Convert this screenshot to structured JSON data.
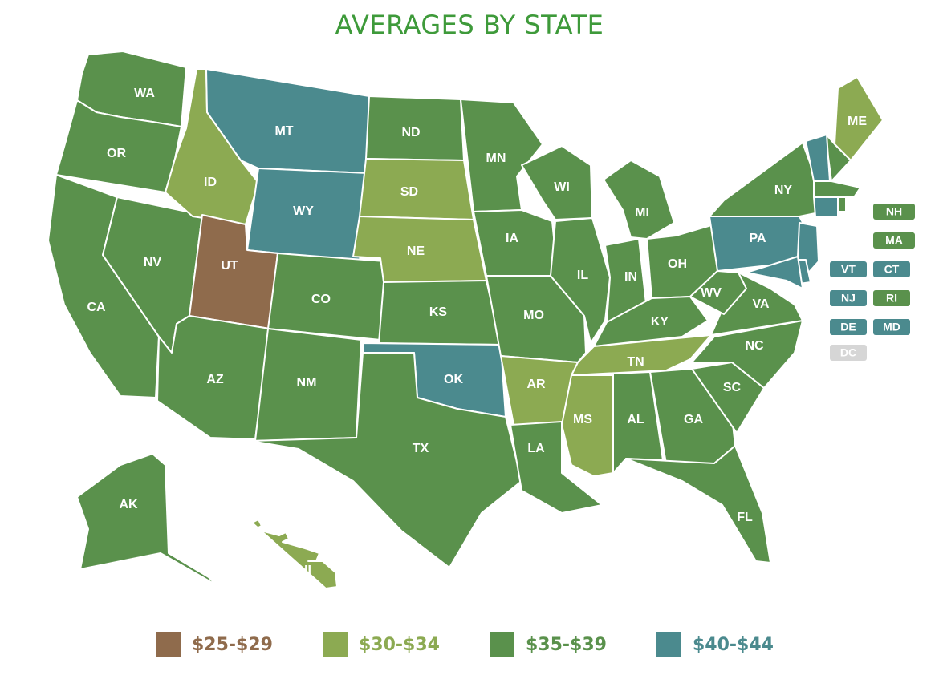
{
  "title": "AVERAGES BY STATE",
  "colors": {
    "25-29": "#8f6b4c",
    "30-34": "#8caa52",
    "35-39": "#5a914c",
    "40-44": "#4b8a8e",
    "none": "#d6d6d6"
  },
  "legend": [
    {
      "range": "25-29",
      "label": "$25-$29"
    },
    {
      "range": "30-34",
      "label": "$30-$34"
    },
    {
      "range": "35-39",
      "label": "$35-$39"
    },
    {
      "range": "40-44",
      "label": "$40-$44"
    }
  ],
  "states": [
    {
      "abbr": "WA",
      "range": "35-39"
    },
    {
      "abbr": "OR",
      "range": "35-39"
    },
    {
      "abbr": "CA",
      "range": "35-39"
    },
    {
      "abbr": "NV",
      "range": "35-39"
    },
    {
      "abbr": "ID",
      "range": "30-34"
    },
    {
      "abbr": "MT",
      "range": "40-44"
    },
    {
      "abbr": "WY",
      "range": "40-44"
    },
    {
      "abbr": "UT",
      "range": "25-29"
    },
    {
      "abbr": "AZ",
      "range": "35-39"
    },
    {
      "abbr": "CO",
      "range": "35-39"
    },
    {
      "abbr": "NM",
      "range": "35-39"
    },
    {
      "abbr": "ND",
      "range": "35-39"
    },
    {
      "abbr": "SD",
      "range": "30-34"
    },
    {
      "abbr": "NE",
      "range": "30-34"
    },
    {
      "abbr": "KS",
      "range": "35-39"
    },
    {
      "abbr": "OK",
      "range": "40-44"
    },
    {
      "abbr": "TX",
      "range": "35-39"
    },
    {
      "abbr": "MN",
      "range": "35-39"
    },
    {
      "abbr": "IA",
      "range": "35-39"
    },
    {
      "abbr": "MO",
      "range": "35-39"
    },
    {
      "abbr": "AR",
      "range": "30-34"
    },
    {
      "abbr": "LA",
      "range": "35-39"
    },
    {
      "abbr": "WI",
      "range": "35-39"
    },
    {
      "abbr": "IL",
      "range": "35-39"
    },
    {
      "abbr": "MI",
      "range": "35-39"
    },
    {
      "abbr": "IN",
      "range": "35-39"
    },
    {
      "abbr": "OH",
      "range": "35-39"
    },
    {
      "abbr": "KY",
      "range": "35-39"
    },
    {
      "abbr": "TN",
      "range": "30-34"
    },
    {
      "abbr": "MS",
      "range": "30-34"
    },
    {
      "abbr": "AL",
      "range": "35-39"
    },
    {
      "abbr": "GA",
      "range": "35-39"
    },
    {
      "abbr": "FL",
      "range": "35-39"
    },
    {
      "abbr": "SC",
      "range": "35-39"
    },
    {
      "abbr": "NC",
      "range": "35-39"
    },
    {
      "abbr": "VA",
      "range": "35-39"
    },
    {
      "abbr": "WV",
      "range": "35-39"
    },
    {
      "abbr": "PA",
      "range": "40-44"
    },
    {
      "abbr": "NY",
      "range": "35-39"
    },
    {
      "abbr": "ME",
      "range": "30-34"
    },
    {
      "abbr": "AK",
      "range": "35-39"
    },
    {
      "abbr": "HI",
      "range": "30-34"
    },
    {
      "abbr": "NH",
      "range": "35-39"
    },
    {
      "abbr": "MA",
      "range": "35-39"
    },
    {
      "abbr": "VT",
      "range": "40-44"
    },
    {
      "abbr": "CT",
      "range": "40-44"
    },
    {
      "abbr": "NJ",
      "range": "40-44"
    },
    {
      "abbr": "RI",
      "range": "35-39"
    },
    {
      "abbr": "DE",
      "range": "40-44"
    },
    {
      "abbr": "MD",
      "range": "40-44"
    },
    {
      "abbr": "DC",
      "range": "none"
    }
  ]
}
